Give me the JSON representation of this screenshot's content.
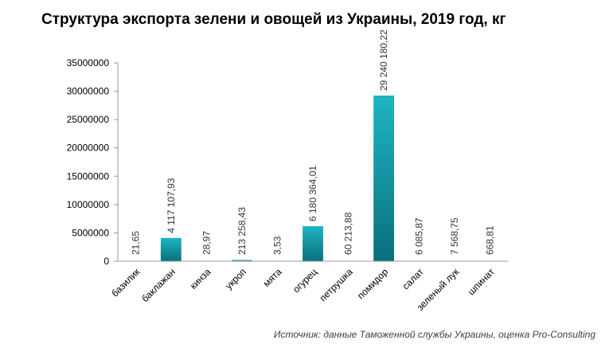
{
  "title": "Структура экспорта зелени и овощей из Украины, 2019 год, кг",
  "source": "Источник: данные Таможенной службы Украины, оценка Pro-Consulting",
  "chart_data": {
    "type": "bar",
    "title": "Структура экспорта зелени и овощей из Украины, 2019 год, кг",
    "xlabel": "",
    "ylabel": "",
    "ylim": [
      0,
      35000000
    ],
    "yticks": [
      0,
      5000000,
      10000000,
      15000000,
      20000000,
      25000000,
      30000000,
      35000000
    ],
    "ytick_labels": [
      "0",
      "5000000",
      "10000000",
      "15000000",
      "20000000",
      "25000000",
      "30000000",
      "35000000"
    ],
    "categories": [
      "базилик",
      "баклажан",
      "кинза",
      "укроп",
      "мята",
      "огурец",
      "петрушка",
      "помидор",
      "салат",
      "зеленый лук",
      "шпинат"
    ],
    "values": [
      21.65,
      4117107.93,
      28.97,
      213258.43,
      3.53,
      6180364.01,
      60213.88,
      29240180.22,
      6085.87,
      7568.75,
      668.81
    ],
    "value_labels": [
      "21,65",
      "4 117 107,93",
      "28,97",
      "213 258,43",
      "3,53",
      "6 180 364,01",
      "60 213,88",
      "29 240 180,22",
      "6 085,87",
      "7 568,75",
      "668,81"
    ],
    "bar_color_top": "#1fb5c2",
    "bar_color_bottom": "#0a6f7d",
    "grid": false,
    "legend": "none"
  }
}
